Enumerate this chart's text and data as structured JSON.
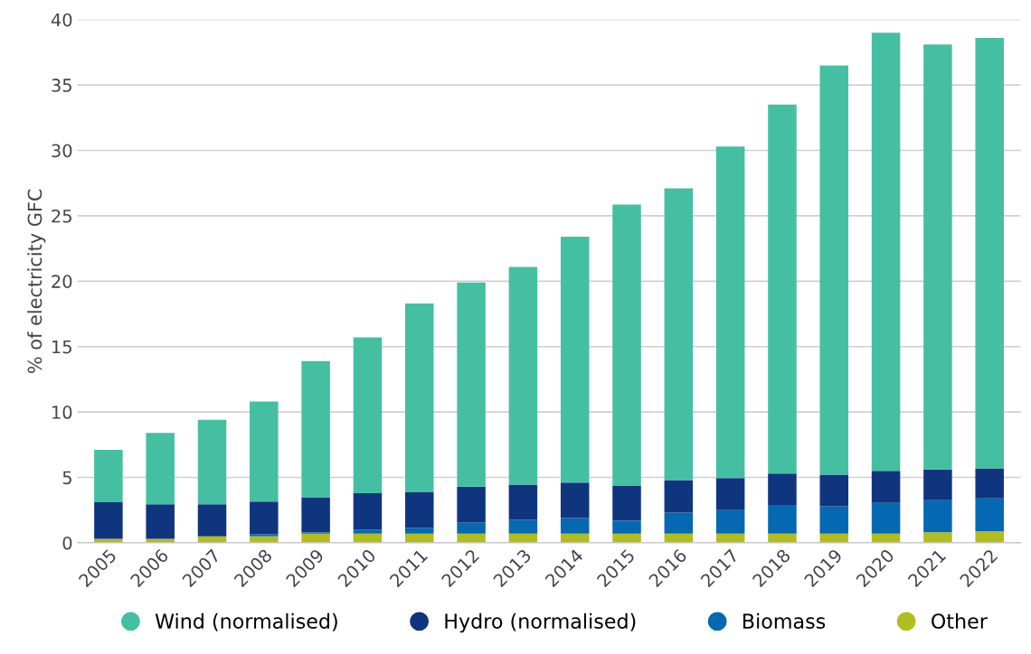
{
  "chart_data": {
    "type": "bar",
    "stacked": true,
    "ylabel": "% of electricity GFC",
    "categories": [
      "2005",
      "2006",
      "2007",
      "2008",
      "2009",
      "2010",
      "2011",
      "2012",
      "2013",
      "2014",
      "2015",
      "2016",
      "2017",
      "2018",
      "2019",
      "2020",
      "2021",
      "2022"
    ],
    "series": [
      {
        "name": "Other",
        "color": "#b3bc1f",
        "values": [
          0.3,
          0.3,
          0.5,
          0.5,
          0.7,
          0.7,
          0.7,
          0.7,
          0.7,
          0.7,
          0.7,
          0.7,
          0.7,
          0.7,
          0.7,
          0.7,
          0.8,
          0.9
        ]
      },
      {
        "name": "Biomass",
        "color": "#0469b2",
        "values": [
          0,
          0,
          0,
          0.15,
          0.1,
          0.3,
          0.45,
          0.85,
          1.05,
          1.2,
          1.0,
          1.6,
          1.8,
          2.2,
          2.1,
          2.35,
          2.45,
          2.5
        ]
      },
      {
        "name": "Hydro (normalised)",
        "color": "#10357f",
        "values": [
          2.8,
          2.65,
          2.45,
          2.5,
          2.65,
          2.8,
          2.75,
          2.75,
          2.7,
          2.7,
          2.65,
          2.5,
          2.45,
          2.4,
          2.4,
          2.45,
          2.35,
          2.3
        ]
      },
      {
        "name": "Wind (normalised)",
        "color": "#45bfa2",
        "values": [
          4.0,
          5.45,
          6.45,
          7.65,
          10.45,
          11.9,
          14.4,
          15.6,
          16.65,
          18.8,
          21.5,
          22.3,
          25.35,
          28.2,
          31.3,
          33.5,
          32.5,
          32.9
        ]
      }
    ],
    "ylim": [
      0,
      40
    ],
    "yticks": [
      0,
      5,
      10,
      15,
      20,
      25,
      30,
      35,
      40
    ],
    "grid": "y",
    "legend": "bottom"
  }
}
